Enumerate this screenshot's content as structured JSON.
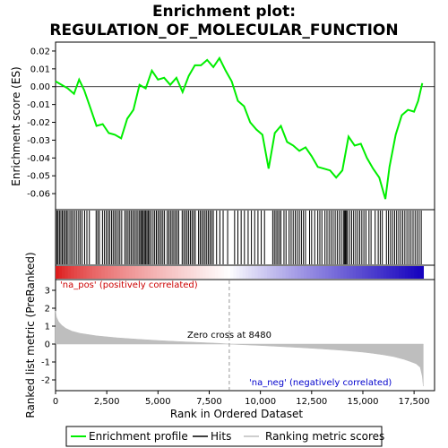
{
  "chart_data": {
    "type": "line",
    "title_line1": "Enrichment plot:",
    "title_line2": "REGULATION_OF_MOLECULAR_FUNCTION",
    "x_label": "Rank in Ordered Dataset",
    "x_range": [
      0,
      18500
    ],
    "x_ticks": [
      0,
      2500,
      5000,
      7500,
      10000,
      12500,
      15000,
      17500
    ],
    "x_tick_labels": [
      "0",
      "2,500",
      "5,000",
      "7,500",
      "10,000",
      "12,500",
      "15,000",
      "17,500"
    ],
    "es_panel": {
      "ylabel": "Enrichment score (ES)",
      "ylim": [
        -0.069,
        0.025
      ],
      "y_ticks": [
        0.02,
        0.01,
        0.0,
        -0.01,
        -0.02,
        -0.03,
        -0.04,
        -0.05,
        -0.06
      ],
      "y_tick_labels": [
        "0.02",
        "0.01",
        "0.00",
        "-0.01",
        "-0.02",
        "-0.03",
        "-0.04",
        "-0.05",
        "-0.06"
      ],
      "series": {
        "name": "Enrichment profile",
        "color": "#00ee00",
        "x": [
          0,
          300,
          600,
          900,
          1150,
          1400,
          1700,
          2000,
          2300,
          2600,
          2900,
          3200,
          3500,
          3800,
          4100,
          4400,
          4700,
          5000,
          5300,
          5600,
          5900,
          6200,
          6500,
          6800,
          7100,
          7400,
          7700,
          8000,
          8300,
          8600,
          8900,
          9200,
          9500,
          9800,
          10100,
          10400,
          10700,
          11000,
          11300,
          11600,
          11900,
          12200,
          12500,
          12800,
          13100,
          13400,
          13700,
          14000,
          14300,
          14600,
          14900,
          15200,
          15500,
          15800,
          16100,
          16300,
          16600,
          16900,
          17200,
          17500,
          17700,
          17900
        ],
        "y": [
          0.003,
          0.001,
          -0.001,
          -0.004,
          0.004,
          -0.002,
          -0.012,
          -0.022,
          -0.021,
          -0.026,
          -0.027,
          -0.029,
          -0.018,
          -0.013,
          0.001,
          -0.001,
          0.009,
          0.004,
          0.005,
          0.001,
          0.005,
          -0.003,
          0.006,
          0.012,
          0.012,
          0.015,
          0.011,
          0.016,
          0.009,
          0.003,
          -0.008,
          -0.011,
          -0.02,
          -0.024,
          -0.027,
          -0.046,
          -0.026,
          -0.022,
          -0.031,
          -0.033,
          -0.036,
          -0.034,
          -0.039,
          -0.045,
          -0.046,
          -0.047,
          -0.051,
          -0.047,
          -0.028,
          -0.033,
          -0.032,
          -0.04,
          -0.046,
          -0.051,
          -0.063,
          -0.045,
          -0.027,
          -0.016,
          -0.013,
          -0.014,
          -0.008,
          0.002
        ]
      }
    },
    "hits_panel": {
      "name": "Hits",
      "hit_positions": [
        60,
        120,
        190,
        260,
        330,
        400,
        470,
        540,
        610,
        700,
        780,
        860,
        950,
        1040,
        1130,
        1210,
        1300,
        1420,
        1530,
        1650,
        1980,
        2060,
        2140,
        2290,
        2380,
        2470,
        2560,
        2640,
        2730,
        2810,
        2890,
        2970,
        3060,
        3140,
        3230,
        3380,
        3460,
        3540,
        3620,
        3700,
        3780,
        3860,
        3940,
        4020,
        4100,
        4160,
        4220,
        4280,
        4340,
        4400,
        4460,
        4520,
        4580,
        4660,
        4760,
        4840,
        4920,
        5000,
        5080,
        5160,
        5240,
        5320,
        5450,
        5530,
        5610,
        5690,
        5770,
        5850,
        5930,
        6010,
        6180,
        6260,
        6340,
        6420,
        6500,
        6580,
        6660,
        6740,
        6820,
        6980,
        7060,
        7140,
        7220,
        7300,
        7380,
        7460,
        7540,
        7620,
        7700,
        7860,
        8020,
        8180,
        8400,
        8740,
        8900,
        9060,
        9220,
        9400,
        9560,
        9720,
        9880,
        10040,
        10200,
        10600,
        10680,
        10760,
        10840,
        10920,
        11000,
        11150,
        11250,
        11400,
        11500,
        11600,
        11700,
        11800,
        11900,
        12000,
        12100,
        12200,
        12400,
        12500,
        12650,
        12800,
        12900,
        13000,
        13150,
        13250,
        13350,
        13450,
        13550,
        13650,
        13750,
        13850,
        13950,
        14050,
        14100,
        14150,
        14200,
        14250,
        14350,
        14450,
        14550,
        14650,
        14750,
        14850,
        14950,
        15050,
        15150,
        15300,
        15400,
        15600,
        15750,
        15850,
        15950,
        16150,
        16250,
        16350,
        16450,
        16550,
        16650,
        16750,
        16850,
        16950,
        17050,
        17150,
        17250,
        17350,
        17450,
        17550,
        17650,
        17750,
        17850
      ]
    },
    "metric_panel": {
      "ylabel": "Ranked list metric (PreRanked)",
      "ylim": [
        -2.6,
        3.6
      ],
      "y_ticks": [
        3,
        2,
        1,
        0,
        -1,
        -2
      ],
      "y_tick_labels": [
        "3",
        "2",
        "1",
        "0",
        "-1",
        "-2"
      ],
      "metric_curve": {
        "x": [
          0,
          50,
          150,
          300,
          500,
          800,
          1200,
          2000,
          3000,
          4000,
          5000,
          6000,
          7000,
          8000,
          8480,
          9000,
          10000,
          11000,
          12000,
          13000,
          14000,
          15000,
          15500,
          16000,
          16500,
          17000,
          17300,
          17600,
          17800,
          17900,
          17950
        ],
        "y": [
          1.85,
          1.5,
          1.25,
          1.05,
          0.88,
          0.72,
          0.6,
          0.46,
          0.35,
          0.27,
          0.2,
          0.14,
          0.09,
          0.04,
          0.0,
          -0.03,
          -0.08,
          -0.14,
          -0.2,
          -0.27,
          -0.35,
          -0.45,
          -0.52,
          -0.6,
          -0.7,
          -0.85,
          -0.97,
          -1.1,
          -1.3,
          -1.8,
          -2.35
        ]
      },
      "zero_cross_label": "Zero cross at 8480",
      "zero_cross": 8480,
      "pos_label": "'na_pos' (positively correlated)",
      "neg_label": "'na_neg' (negatively correlated)",
      "pos_color": "#cc0000",
      "neg_color": "#0000cc"
    },
    "legend": [
      {
        "label": "Enrichment profile",
        "color": "#00ee00"
      },
      {
        "label": "Hits",
        "color": "#000000"
      },
      {
        "label": "Ranking metric scores",
        "color": "#bebebe"
      }
    ]
  }
}
